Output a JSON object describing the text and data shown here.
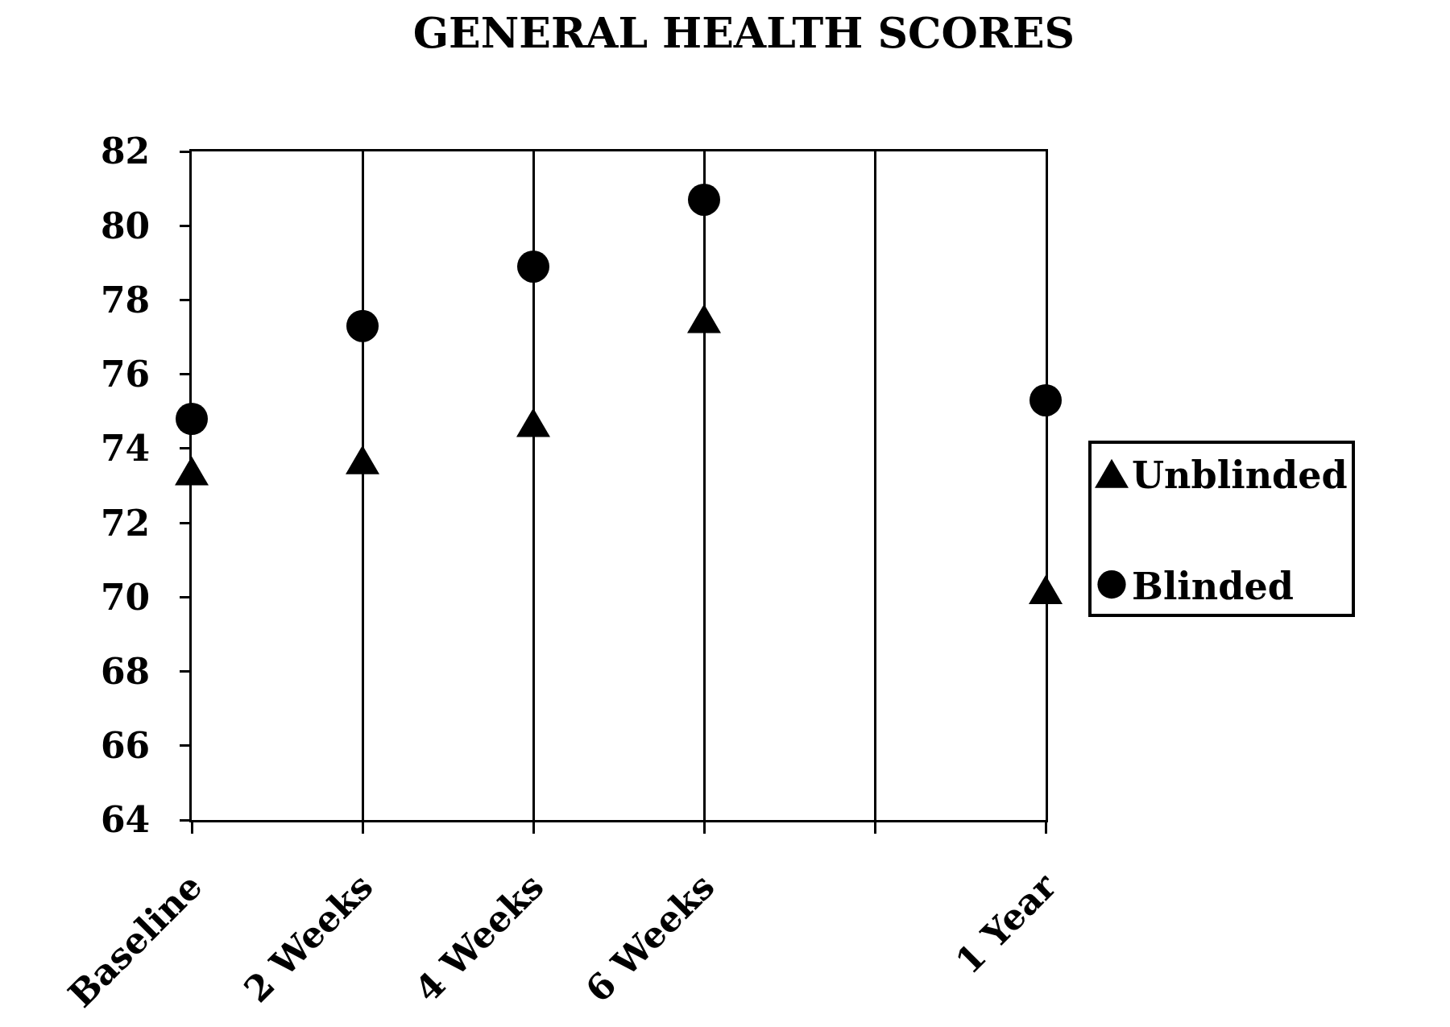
{
  "chart_data": {
    "type": "scatter",
    "title": "GENERAL HEALTH SCORES",
    "categories": [
      "Baseline",
      "2 Weeks",
      "4 Weeks",
      "6 Weeks",
      null,
      "1 Year"
    ],
    "series": [
      {
        "name": "Unblinded",
        "color": "#000000",
        "marker": "triangle",
        "values": [
          73.4,
          73.7,
          74.7,
          77.5,
          null,
          70.2
        ]
      },
      {
        "name": "Blinded",
        "color": "#000000",
        "marker": "circle",
        "values": [
          74.8,
          77.3,
          78.9,
          80.7,
          null,
          75.3
        ]
      }
    ],
    "ylim": [
      64,
      82
    ],
    "yticks": [
      64,
      66,
      68,
      70,
      72,
      74,
      76,
      78,
      80,
      82
    ],
    "grid": "x",
    "legend": "right"
  }
}
